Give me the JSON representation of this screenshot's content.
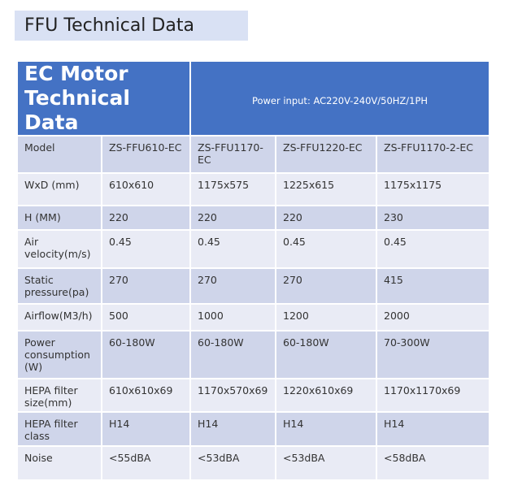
{
  "header": {
    "title": "FFU Technical Data"
  },
  "table": {
    "heading": [
      "EC Motor Technical Data",
      "Power input: AC220V-240V/50HZ/1PH"
    ],
    "rows": [
      [
        "Model",
        "ZS-FFU610-EC",
        "ZS-FFU1170-EC",
        "ZS-FFU1220-EC",
        "ZS-FFU1170-2-EC"
      ],
      [
        "WxD (mm)",
        "610x610",
        "1175x575",
        "1225x615",
        "1175x1175"
      ],
      [
        "H (MM)",
        "220",
        "220",
        "220",
        "230"
      ],
      [
        "Air velocity(m/s)",
        "0.45",
        "0.45",
        "0.45",
        "0.45"
      ],
      [
        "Static pressure(pa)",
        "270",
        "270",
        "270",
        "415"
      ],
      [
        "Airflow(M3/h)",
        "500",
        "1000",
        "1200",
        "2000"
      ],
      [
        "Power consumption (W)",
        "60-180W",
        "60-180W",
        "60-180W",
        "70-300W"
      ],
      [
        "HEPA filter size(mm)",
        "610x610x69",
        "1170x570x69",
        "1220x610x69",
        "1170x1170x69"
      ],
      [
        "HEPA filter class",
        "H14",
        "H14",
        "H14",
        "H14"
      ],
      [
        "Noise",
        "<55dBA",
        "<53dBA",
        "<53dBA",
        "<58dBA"
      ]
    ]
  }
}
